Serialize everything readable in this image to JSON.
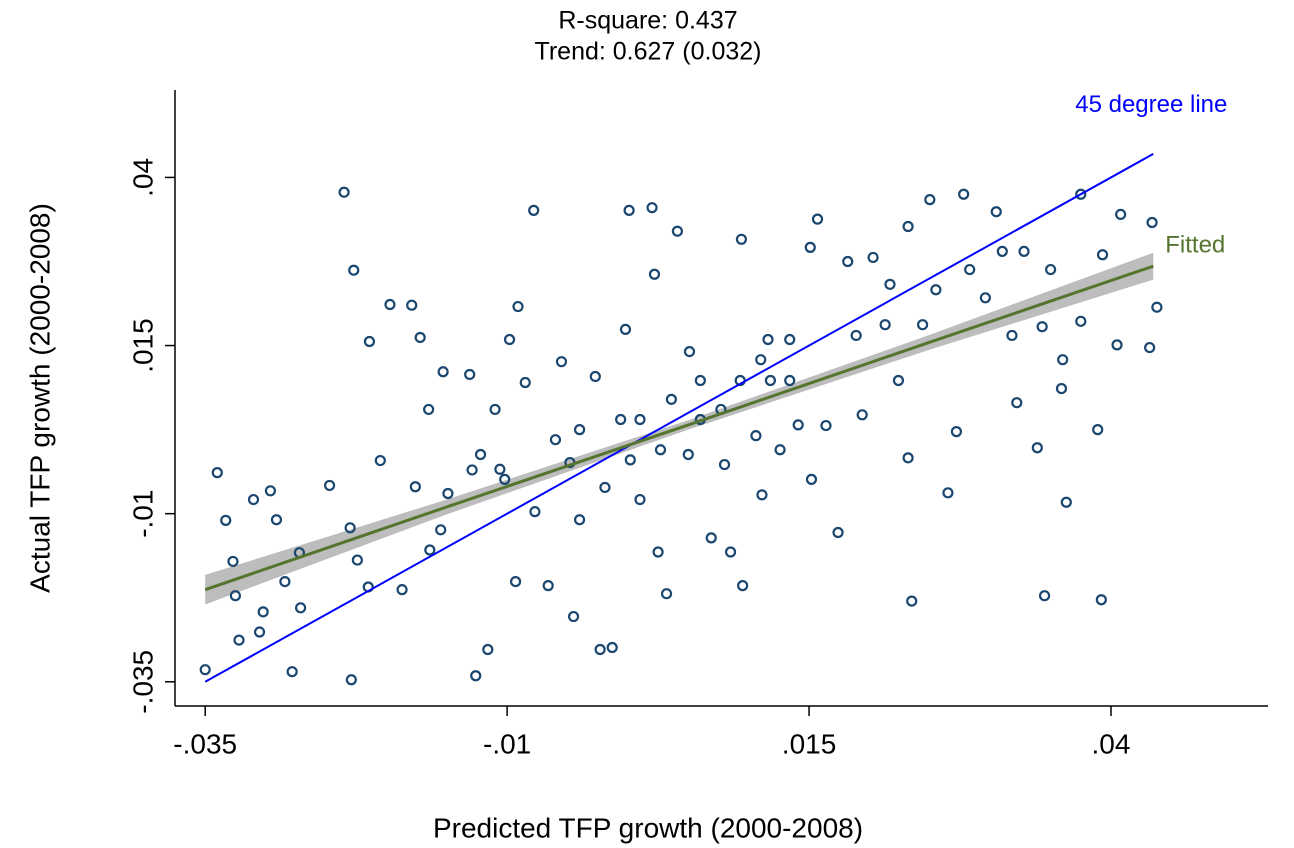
{
  "chart_data": {
    "type": "scatter",
    "title": "R-square: 0.437",
    "subtitle": "Trend: 0.627 (0.032)",
    "x_label": "Predicted TFP growth (2000-2008)",
    "y_label": "Actual TFP growth (2000-2008)",
    "xlim": [
      -0.0375,
      0.053
    ],
    "ylim": [
      -0.0386,
      0.053
    ],
    "xticks": [
      {
        "value": -0.035,
        "label": "-.035"
      },
      {
        "value": -0.01,
        "label": "-.01"
      },
      {
        "value": 0.015,
        "label": ".015"
      },
      {
        "value": 0.04,
        "label": ".04"
      }
    ],
    "yticks": [
      {
        "value": -0.035,
        "label": "-.035"
      },
      {
        "value": -0.01,
        "label": "-.01"
      },
      {
        "value": 0.015,
        "label": ".015"
      },
      {
        "value": 0.04,
        "label": ".04"
      }
    ],
    "grid": false,
    "color": "#1a476f",
    "x": [
      -0.035,
      -0.034,
      -0.0333,
      -0.0327,
      -0.0325,
      -0.031,
      -0.0296,
      -0.0291,
      -0.0302,
      -0.0278,
      -0.0271,
      -0.0247,
      -0.0235,
      -0.0227,
      -0.023,
      -0.0224,
      -0.0229,
      -0.0214,
      -0.0205,
      -0.0197,
      -0.0179,
      -0.0172,
      -0.0165,
      -0.0176,
      -0.0187,
      -0.0155,
      -0.0153,
      -0.0149,
      -0.0129,
      -0.0131,
      -0.0116,
      -0.0122,
      -0.0126,
      -0.011,
      -0.0098,
      -0.0091,
      -0.0093,
      -0.0102,
      -0.0078,
      -0.0085,
      -0.0077,
      -0.006,
      -0.0066,
      -0.0055,
      -0.0048,
      -0.004,
      -0.0045,
      -0.0027,
      -0.0019,
      -0.0013,
      -0.0002,
      0.0001,
      0.0002,
      0.001,
      0.002,
      0.0022,
      0.0025,
      0.0032,
      0.0036,
      0.0041,
      0.0051,
      0.005,
      0.006,
      0.0069,
      0.008,
      0.0085,
      0.0093,
      0.0094,
      0.0095,
      0.0106,
      0.0111,
      0.0116,
      0.0118,
      0.0126,
      0.0134,
      0.0141,
      0.0151,
      0.0157,
      0.0152,
      0.0164,
      0.0174,
      0.0182,
      0.0189,
      0.0194,
      0.0203,
      0.0213,
      0.0217,
      0.0224,
      0.0232,
      0.0232,
      0.0235,
      0.0244,
      0.025,
      0.0255,
      0.0265,
      0.0272,
      0.0278,
      0.0283,
      0.0296,
      0.0305,
      0.031,
      0.0318,
      0.0322,
      0.0328,
      0.0339,
      0.0343,
      0.0345,
      0.035,
      0.0363,
      0.0359,
      0.0375,
      0.0389,
      0.0392,
      0.0393,
      0.0405,
      0.0408,
      0.0434,
      0.0432,
      0.0438,
      0.0375,
      0.036,
      -0.0272,
      -0.0284,
      -0.0322,
      -0.0305,
      -0.0215,
      -0.0164,
      -0.0106,
      -0.0006,
      0.006,
      0.0077,
      0.011,
      0.0134,
      0.001,
      -0.004,
      -0.0023,
      0.0027
    ],
    "values": [
      -0.0332,
      -0.0039,
      -0.011,
      -0.0171,
      -0.0222,
      -0.0079,
      -0.0066,
      -0.0109,
      -0.0246,
      -0.0335,
      -0.024,
      -0.0058,
      0.0378,
      0.0262,
      -0.0121,
      -0.0169,
      -0.0347,
      0.0156,
      -0.0021,
      0.0211,
      0.021,
      0.0162,
      0.0055,
      -0.006,
      -0.0213,
      -0.0124,
      0.0111,
      -0.007,
      -0.0035,
      0.0107,
      -0.0302,
      -0.0012,
      -0.0341,
      0.0055,
      0.0159,
      0.0208,
      -0.0201,
      -0.0049,
      0.0351,
      0.0095,
      -0.0097,
      0.001,
      -0.0207,
      0.0126,
      -0.0024,
      0.0025,
      -0.0253,
      0.0104,
      -0.0061,
      -0.0299,
      0.0174,
      0.0351,
      -0.002,
      0.004,
      0.0355,
      0.0256,
      -0.0157,
      -0.0219,
      0.007,
      0.032,
      0.0141,
      -0.0012,
      0.0098,
      -0.0136,
      -0.0027,
      -0.0157,
      0.0098,
      0.0308,
      -0.0207,
      0.0016,
      -0.0072,
      0.0159,
      0.0098,
      -0.0005,
      0.0159,
      0.0032,
      0.0296,
      0.0338,
      -0.0049,
      0.0031,
      -0.0128,
      0.0275,
      0.0165,
      0.0047,
      0.0281,
      0.0181,
      0.0241,
      0.0098,
      0.0327,
      -0.0017,
      -0.023,
      0.0181,
      0.0367,
      0.0233,
      -0.0069,
      0.0022,
      0.0375,
      0.0263,
      0.0221,
      0.0349,
      0.029,
      0.0165,
      0.0065,
      0.029,
      -0.0002,
      0.0178,
      -0.0222,
      0.0263,
      -0.0083,
      0.0086,
      0.0375,
      0.0025,
      -0.0228,
      0.0285,
      0.0151,
      0.0345,
      0.0333,
      0.0147,
      0.0207,
      0.0186,
      0.0129,
      -0.0158,
      -0.0201,
      -0.0288,
      -0.0276,
      -0.0209,
      -0.0154,
      -0.0034,
      0.004,
      0.004,
      0.0055,
      0.0129,
      0.0098,
      -0.0079,
      -0.0109,
      -0.0302,
      -0.0005
    ],
    "lines": [
      {
        "name": "45 degree line",
        "color": "#0000ff",
        "x": [
          -0.035,
          0.0435
        ],
        "values": [
          -0.035,
          0.0435
        ]
      },
      {
        "name": "Fitted",
        "color": "#55752f",
        "band_color": "#bdbdbd",
        "x": [
          -0.035,
          -0.015,
          0.005,
          0.025,
          0.0435
        ],
        "values": [
          -0.0213,
          -0.009,
          0.0032,
          0.0155,
          0.0268
        ],
        "ci_lower": [
          -0.0235,
          -0.0101,
          0.0025,
          0.0144,
          0.0248
        ],
        "ci_upper": [
          -0.0191,
          -0.0079,
          0.0039,
          0.0166,
          0.0288
        ]
      }
    ]
  }
}
